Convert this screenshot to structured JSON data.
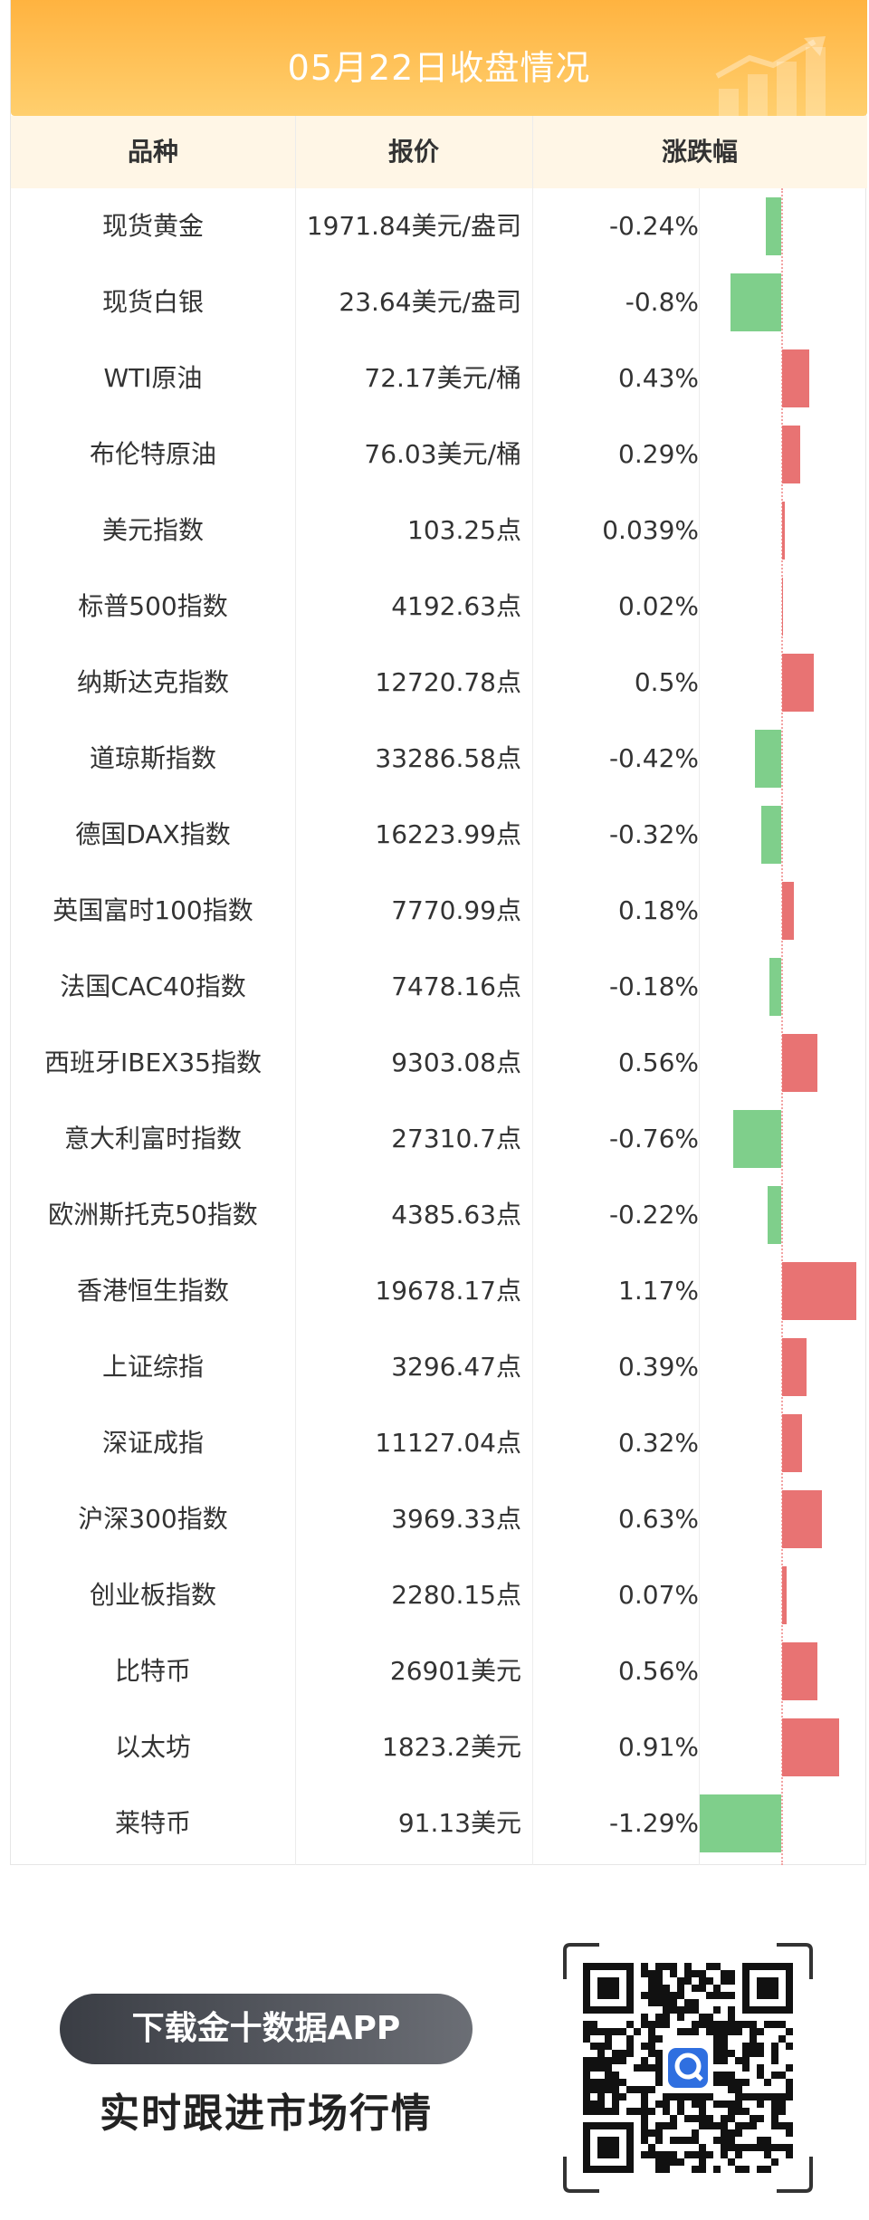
{
  "title": "05月22日收盘情况",
  "columns": {
    "name": "品种",
    "price": "报价",
    "change": "涨跌幅"
  },
  "max_abs_change": 1.29,
  "rows": [
    {
      "name": "现货黄金",
      "price": "1971.84美元/盎司",
      "change": "-0.24%",
      "value": -0.24
    },
    {
      "name": "现货白银",
      "price": "23.64美元/盎司",
      "change": "-0.8%",
      "value": -0.8
    },
    {
      "name": "WTI原油",
      "price": "72.17美元/桶",
      "change": "0.43%",
      "value": 0.43
    },
    {
      "name": "布伦特原油",
      "price": "76.03美元/桶",
      "change": "0.29%",
      "value": 0.29
    },
    {
      "name": "美元指数",
      "price": "103.25点",
      "change": "0.039%",
      "value": 0.039
    },
    {
      "name": "标普500指数",
      "price": "4192.63点",
      "change": "0.02%",
      "value": 0.02
    },
    {
      "name": "纳斯达克指数",
      "price": "12720.78点",
      "change": "0.5%",
      "value": 0.5
    },
    {
      "name": "道琼斯指数",
      "price": "33286.58点",
      "change": "-0.42%",
      "value": -0.42
    },
    {
      "name": "德国DAX指数",
      "price": "16223.99点",
      "change": "-0.32%",
      "value": -0.32
    },
    {
      "name": "英国富时100指数",
      "price": "7770.99点",
      "change": "0.18%",
      "value": 0.18
    },
    {
      "name": "法国CAC40指数",
      "price": "7478.16点",
      "change": "-0.18%",
      "value": -0.18
    },
    {
      "name": "西班牙IBEX35指数",
      "price": "9303.08点",
      "change": "0.56%",
      "value": 0.56
    },
    {
      "name": "意大利富时指数",
      "price": "27310.7点",
      "change": "-0.76%",
      "value": -0.76
    },
    {
      "name": "欧洲斯托克50指数",
      "price": "4385.63点",
      "change": "-0.22%",
      "value": -0.22
    },
    {
      "name": "香港恒生指数",
      "price": "19678.17点",
      "change": "1.17%",
      "value": 1.17
    },
    {
      "name": "上证综指",
      "price": "3296.47点",
      "change": "0.39%",
      "value": 0.39
    },
    {
      "name": "深证成指",
      "price": "11127.04点",
      "change": "0.32%",
      "value": 0.32
    },
    {
      "name": "沪深300指数",
      "price": "3969.33点",
      "change": "0.63%",
      "value": 0.63
    },
    {
      "name": "创业板指数",
      "price": "2280.15点",
      "change": "0.07%",
      "value": 0.07
    },
    {
      "name": "比特币",
      "price": "26901美元",
      "change": "0.56%",
      "value": 0.56
    },
    {
      "name": "以太坊",
      "price": "1823.2美元",
      "change": "0.91%",
      "value": 0.91
    },
    {
      "name": "莱特币",
      "price": "91.13美元",
      "change": "-1.29%",
      "value": -1.29
    }
  ],
  "colors": {
    "up": "#e87373",
    "down": "#7fcf8b",
    "banner": "#ffb340",
    "header_bg": "#fff6e6"
  },
  "footer": {
    "download_label": "下载金十数据APP",
    "tagline": "实时跟进市场行情",
    "qr_icon": "qr-code-icon"
  }
}
